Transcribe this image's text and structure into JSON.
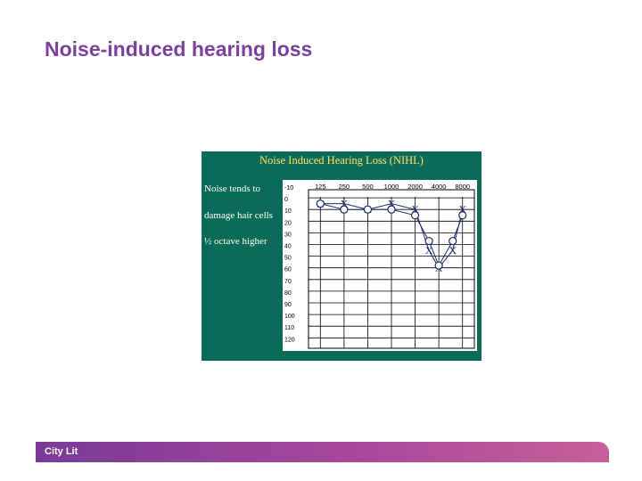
{
  "slide": {
    "title": "Noise-induced hearing loss",
    "footer": "City Lit"
  },
  "chart_data": {
    "type": "line",
    "title": "Noise Induced Hearing Loss (NIHL)",
    "notes": [
      "Noise tends to",
      "damage hair cells",
      "½ octave higher"
    ],
    "x_tick_labels": [
      "125",
      "250",
      "500",
      "1000",
      "2000",
      "4000",
      "8000"
    ],
    "y_tick_labels": [
      "-10",
      "0",
      "10",
      "20",
      "30",
      "40",
      "50",
      "60",
      "70",
      "80",
      "90",
      "100",
      "110",
      "120"
    ],
    "x": [
      125,
      250,
      500,
      1000,
      2000,
      4000,
      8000
    ],
    "ylim": [
      120,
      -10
    ],
    "grid": true,
    "series": [
      {
        "marker": "X",
        "values": [
          5,
          5,
          10,
          5,
          10,
          45,
          60,
          45,
          10
        ],
        "x": [
          125,
          250,
          500,
          1000,
          2000,
          3000,
          4000,
          6000,
          8000
        ]
      },
      {
        "marker": "O",
        "values": [
          5,
          10,
          10,
          10,
          15,
          37,
          58,
          37,
          15
        ],
        "x": [
          125,
          250,
          500,
          1000,
          2000,
          3000,
          4000,
          6000,
          8000
        ]
      }
    ],
    "colors": {
      "background": "#0c6a58",
      "title": "#ffe066",
      "grid": "#000000",
      "marks": "#1a2a6c"
    }
  }
}
